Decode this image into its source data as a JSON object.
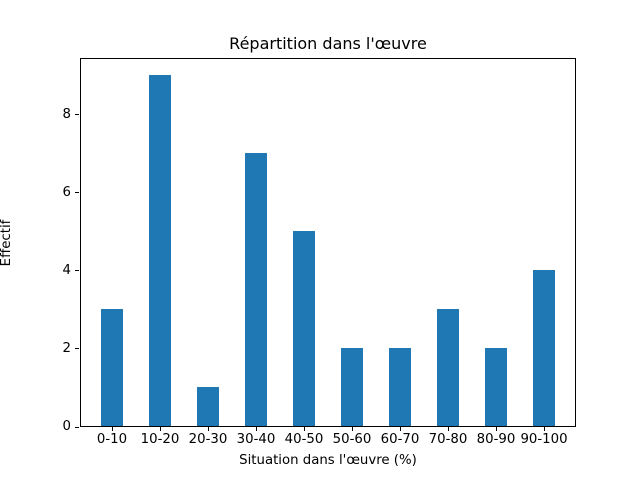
{
  "chart_data": {
    "type": "bar",
    "title": "Répartition dans l'œuvre",
    "xlabel": "Situation dans l'œuvre (%)",
    "ylabel": "Effectif",
    "categories": [
      "0-10",
      "10-20",
      "20-30",
      "30-40",
      "40-50",
      "50-60",
      "60-70",
      "70-80",
      "80-90",
      "90-100"
    ],
    "values": [
      3,
      9,
      1,
      7,
      5,
      2,
      2,
      3,
      2,
      4
    ],
    "yticks": [
      0,
      2,
      4,
      6,
      8
    ],
    "ylim": [
      0,
      9.45
    ],
    "bar_color": "#1f77b4",
    "grid": false,
    "legend_position": "none"
  }
}
